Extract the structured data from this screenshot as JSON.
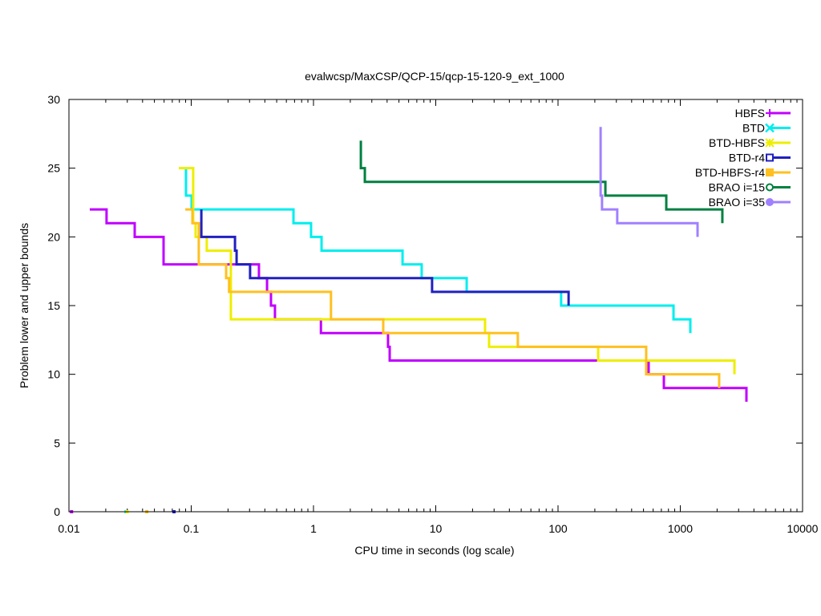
{
  "chart_data": {
    "type": "line",
    "title": "evalwcsp/MaxCSP/QCP-15/qcp-15-120-9_ext_1000",
    "xlabel": "CPU time in seconds (log scale)",
    "ylabel": "Problem lower and upper bounds",
    "xscale": "log",
    "xlim": [
      0.01,
      10000
    ],
    "ylim": [
      0,
      30
    ],
    "xticks": [
      {
        "v": 0.01,
        "label": "0.01"
      },
      {
        "v": 0.1,
        "label": "0.1"
      },
      {
        "v": 1,
        "label": "1"
      },
      {
        "v": 10,
        "label": "10"
      },
      {
        "v": 100,
        "label": "100"
      },
      {
        "v": 1000,
        "label": "1000"
      },
      {
        "v": 10000,
        "label": "10000"
      }
    ],
    "yticks": [
      {
        "v": 0,
        "label": "0"
      },
      {
        "v": 5,
        "label": "5"
      },
      {
        "v": 10,
        "label": "10"
      },
      {
        "v": 15,
        "label": "15"
      },
      {
        "v": 20,
        "label": "20"
      },
      {
        "v": 25,
        "label": "25"
      },
      {
        "v": 30,
        "label": "30"
      }
    ],
    "legend_position": "top-right",
    "series": [
      {
        "name": "HBFS",
        "color": "#c000ff",
        "marker": "plus",
        "upper": [
          [
            0.0148,
            22
          ],
          [
            0.0203,
            21
          ],
          [
            0.0345,
            20
          ],
          [
            0.0594,
            18
          ],
          [
            0.358,
            17
          ],
          [
            0.417,
            16
          ],
          [
            0.449,
            15
          ],
          [
            0.484,
            14
          ],
          [
            1.15,
            13
          ],
          [
            4.07,
            12
          ],
          [
            4.2,
            11
          ],
          [
            551,
            10
          ],
          [
            734,
            9
          ],
          [
            3475,
            8
          ]
        ],
        "lower": [
          [
            0.0105,
            0
          ]
        ]
      },
      {
        "name": "BTD",
        "color": "#00eeee",
        "marker": "cross",
        "upper": [
          [
            0.0906,
            25
          ],
          [
            0.0906,
            23
          ],
          [
            0.1007,
            22
          ],
          [
            0.686,
            21
          ],
          [
            0.955,
            20
          ],
          [
            1.164,
            19
          ],
          [
            5.35,
            18
          ],
          [
            7.67,
            17
          ],
          [
            17.9,
            16
          ],
          [
            106,
            15
          ],
          [
            880,
            14
          ],
          [
            1208,
            13
          ]
        ],
        "lower": [
          [
            0.0293,
            0
          ]
        ]
      },
      {
        "name": "BTD-HBFS",
        "color": "#eeee00",
        "marker": "star",
        "upper": [
          [
            0.0791,
            25
          ],
          [
            0.1038,
            21
          ],
          [
            0.1087,
            20
          ],
          [
            0.134,
            19
          ],
          [
            0.211,
            14
          ],
          [
            25.3,
            13
          ],
          [
            27.3,
            12
          ],
          [
            213,
            11
          ],
          [
            2773,
            10
          ]
        ],
        "lower": [
          [
            0.0299,
            0
          ]
        ]
      },
      {
        "name": "BTD-r4",
        "color": "#2020c0",
        "marker": "square-open",
        "upper": [
          [
            0.121,
            22
          ],
          [
            0.121,
            20
          ],
          [
            0.228,
            19
          ],
          [
            0.235,
            18
          ],
          [
            0.303,
            17
          ],
          [
            9.33,
            16
          ],
          [
            122,
            15
          ]
        ],
        "lower": [
          [
            0.0723,
            0
          ]
        ]
      },
      {
        "name": "BTD-HBFS-r4",
        "color": "#ffc020",
        "marker": "square-filled",
        "upper": [
          [
            0.0894,
            22
          ],
          [
            0.1023,
            21
          ],
          [
            0.1153,
            18
          ],
          [
            0.193,
            17
          ],
          [
            0.204,
            16
          ],
          [
            1.39,
            14
          ],
          [
            3.72,
            13
          ],
          [
            46.9,
            12
          ],
          [
            526,
            10
          ],
          [
            2080,
            9
          ]
        ],
        "lower": [
          [
            0.0433,
            0
          ]
        ]
      },
      {
        "name": "BRAO i=15",
        "color": "#008040",
        "marker": "circle-open",
        "upper": [
          [
            2.44,
            27
          ],
          [
            2.44,
            25
          ],
          [
            2.63,
            24
          ],
          [
            244,
            23
          ],
          [
            768,
            22
          ],
          [
            2208,
            21
          ]
        ],
        "lower": []
      },
      {
        "name": "BRAO i=35",
        "color": "#a080ff",
        "marker": "circle-filled",
        "upper": [
          [
            223,
            28
          ],
          [
            223,
            23
          ],
          [
            229,
            22
          ],
          [
            305,
            21
          ],
          [
            1384,
            20
          ]
        ],
        "lower": []
      }
    ]
  }
}
